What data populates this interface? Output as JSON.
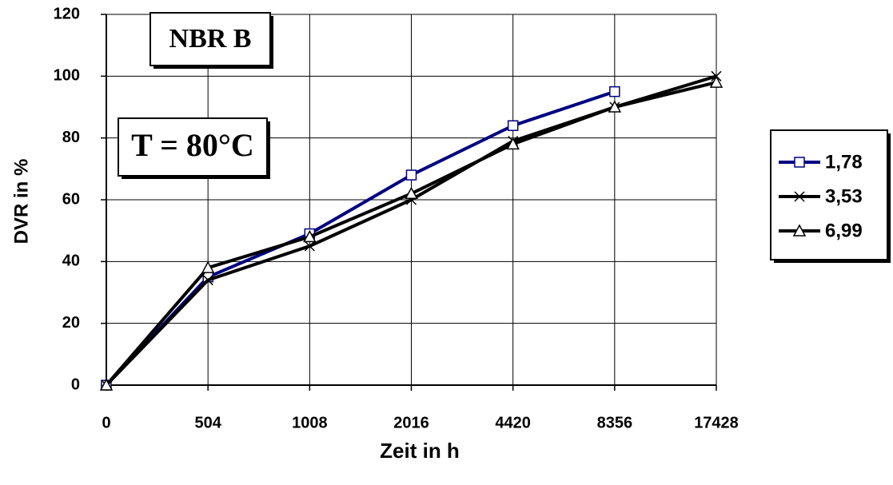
{
  "chart_data": {
    "type": "line",
    "x_label": "Zeit in h",
    "y_label": "DVR in %",
    "annotations": [
      "NBR B",
      "T = 80°C"
    ],
    "categories": [
      "0",
      "504",
      "1008",
      "2016",
      "4420",
      "8356",
      "17428"
    ],
    "series": [
      {
        "name": "1,78",
        "color": "#000080",
        "marker": "square",
        "values": [
          0,
          35,
          49,
          68,
          84,
          95,
          null
        ]
      },
      {
        "name": "3,53",
        "color": "#000000",
        "marker": "x",
        "values": [
          0,
          34,
          45,
          60,
          79,
          90,
          100
        ]
      },
      {
        "name": "6,99",
        "color": "#000000",
        "marker": "triangle",
        "values": [
          0,
          38,
          48,
          62,
          78,
          90,
          98
        ]
      }
    ],
    "ylim": [
      0,
      120
    ],
    "yticks": [
      0,
      20,
      40,
      60,
      80,
      100,
      120
    ],
    "grid": true,
    "legend": "right"
  }
}
